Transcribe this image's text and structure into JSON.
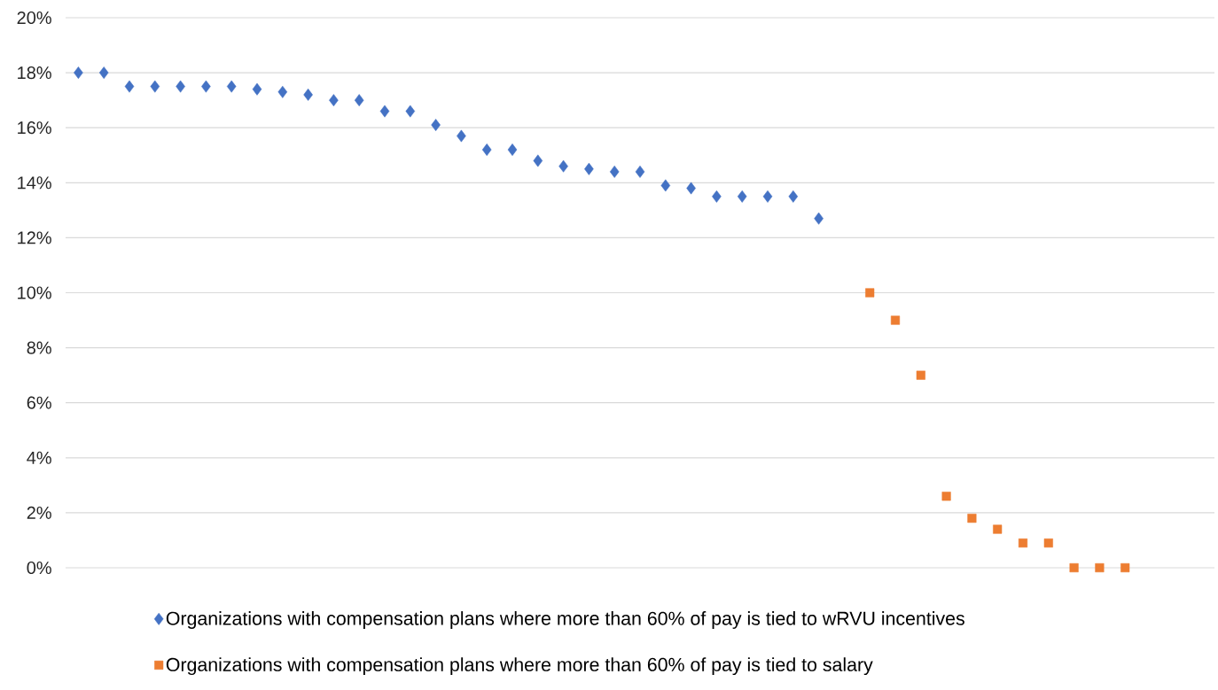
{
  "chart_data": {
    "type": "scatter",
    "categories": [
      null,
      null,
      null,
      null,
      null,
      null,
      null,
      null,
      null,
      null,
      null,
      null,
      null,
      null,
      null,
      null,
      null,
      null,
      null,
      null,
      null,
      null,
      null,
      null,
      null,
      null,
      null,
      null,
      null,
      null,
      null,
      null,
      null,
      null,
      null,
      null,
      null,
      null,
      null,
      null,
      null,
      null,
      null,
      null,
      null
    ],
    "series": [
      {
        "name": "Organizations with compensation plans where more than 60% of pay is tied to wRVU incentives",
        "color": "#4472c4",
        "marker": "diamond",
        "values": [
          18,
          18,
          17.5,
          17.5,
          17.5,
          17.5,
          17.5,
          17.4,
          17.3,
          17.2,
          17.0,
          17.0,
          16.6,
          16.6,
          16.1,
          15.7,
          15.2,
          15.2,
          14.8,
          14.6,
          14.5,
          14.4,
          14.4,
          13.9,
          13.8,
          13.5,
          13.5,
          13.5,
          13.5,
          12.7,
          null,
          null,
          null,
          null,
          null,
          null,
          null,
          null,
          null,
          null,
          null,
          null,
          null,
          null,
          null
        ]
      },
      {
        "name": "Organizations with compensation plans where more than 60% of pay is tied to salary",
        "color": "#ed7d31",
        "marker": "square",
        "values": [
          null,
          null,
          null,
          null,
          null,
          null,
          null,
          null,
          null,
          null,
          null,
          null,
          null,
          null,
          null,
          null,
          null,
          null,
          null,
          null,
          null,
          null,
          null,
          null,
          null,
          null,
          null,
          null,
          null,
          null,
          null,
          10.0,
          9.0,
          7.0,
          2.6,
          1.8,
          1.4,
          0.9,
          0.9,
          0,
          0,
          0,
          null,
          null,
          null
        ]
      }
    ],
    "ylim": [
      0,
      20
    ],
    "yticks": [
      {
        "value": 0,
        "label": "0%"
      },
      {
        "value": 2,
        "label": "2%"
      },
      {
        "value": 4,
        "label": "4%"
      },
      {
        "value": 6,
        "label": "6%"
      },
      {
        "value": 8,
        "label": "8%"
      },
      {
        "value": 10,
        "label": "10%"
      },
      {
        "value": 12,
        "label": "12%"
      },
      {
        "value": 14,
        "label": "14%"
      },
      {
        "value": 16,
        "label": "16%"
      },
      {
        "value": 18,
        "label": "18%"
      },
      {
        "value": 20,
        "label": "20%"
      }
    ],
    "grid": "y",
    "legend": "bottom",
    "tick_labels": "y"
  }
}
